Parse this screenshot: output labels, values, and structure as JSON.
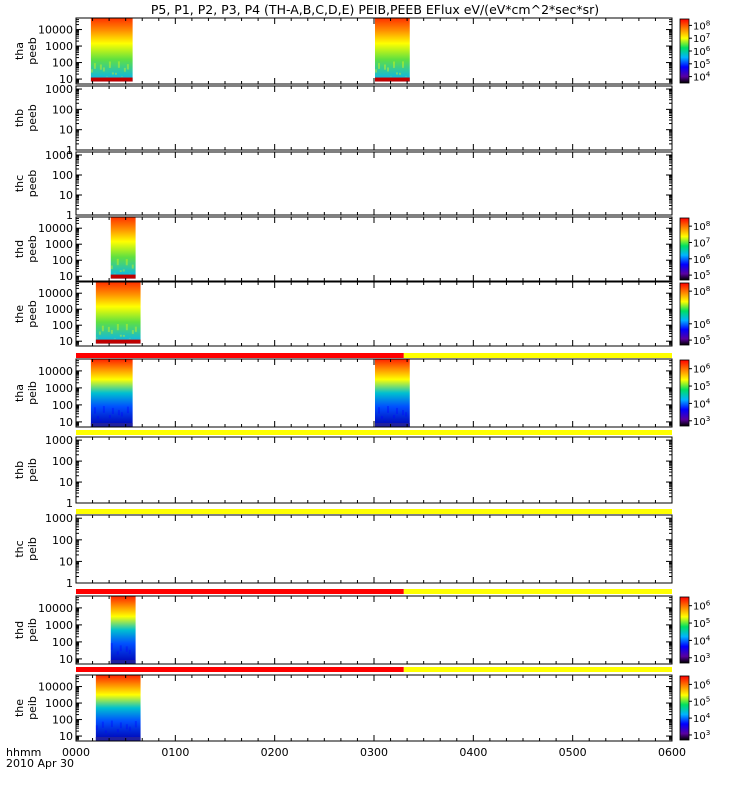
{
  "title": "P5, P1, P2, P3, P4 (TH-A,B,C,D,E) PEIB,PEEB EFlux eV/(eV*cm^2*sec*sr)",
  "x_axis": {
    "label_line1": "hhmm",
    "label_line2": "2010 Apr 30",
    "ticks": [
      "0000",
      "0100",
      "0200",
      "0300",
      "0400",
      "0500",
      "0600"
    ],
    "range_hours": [
      0,
      6
    ]
  },
  "colors": {
    "flag_red": "#ff0000",
    "flag_yellow": "#ffff00",
    "axis": "#000000"
  },
  "panels": [
    {
      "id": "tha-peeb",
      "ylabel1": "tha",
      "ylabel2": "peeb",
      "yticks": [
        "10",
        "100",
        "1000",
        "10000"
      ],
      "ylog": [
        0.7,
        4.7
      ],
      "colorbar": {
        "ticks": [
          "10^4",
          "10^5",
          "10^6",
          "10^7",
          "10^8"
        ],
        "range": [
          3.5,
          8.5
        ]
      },
      "spectrogram": [
        {
          "start": 0.15,
          "end": 0.57,
          "ylow": 0.85
        },
        {
          "start": 3.01,
          "end": 3.36,
          "ylow": 0.85
        }
      ],
      "flag": null
    },
    {
      "id": "thb-peeb",
      "ylabel1": "thb",
      "ylabel2": "peeb",
      "yticks": [
        "1",
        "10",
        "100",
        "1000"
      ],
      "ylog": [
        0,
        3.15
      ],
      "colorbar": null,
      "spectrogram": [],
      "flag": null
    },
    {
      "id": "thc-peeb",
      "ylabel1": "thc",
      "ylabel2": "peeb",
      "yticks": [
        "1",
        "10",
        "100",
        "1000"
      ],
      "ylog": [
        0,
        3.15
      ],
      "colorbar": null,
      "spectrogram": [],
      "flag": null
    },
    {
      "id": "thd-peeb",
      "ylabel1": "thd",
      "ylabel2": "peeb",
      "yticks": [
        "10",
        "100",
        "1000",
        "10000"
      ],
      "ylog": [
        0.7,
        4.7
      ],
      "colorbar": {
        "ticks": [
          "10^5",
          "10^6",
          "10^7",
          "10^8"
        ],
        "range": [
          4.7,
          8.5
        ]
      },
      "spectrogram": [
        {
          "start": 0.35,
          "end": 0.6,
          "ylow": 0.85
        }
      ],
      "flag": null
    },
    {
      "id": "the-peeb",
      "ylabel1": "the",
      "ylabel2": "peeb",
      "yticks": [
        "10",
        "100",
        "1000",
        "10000"
      ],
      "ylog": [
        0.7,
        4.7
      ],
      "colorbar": {
        "ticks": [
          "10^5",
          "10^6",
          "10^8"
        ],
        "range": [
          4.7,
          8.5
        ]
      },
      "spectrogram": [
        {
          "start": 0.2,
          "end": 0.65,
          "ylow": 0.85
        }
      ],
      "flag": null
    },
    {
      "id": "tha-peib",
      "ylabel1": "tha",
      "ylabel2": "peib",
      "yticks": [
        "10",
        "100",
        "1000",
        "10000"
      ],
      "ylog": [
        0.7,
        4.7
      ],
      "colorbar": {
        "ticks": [
          "10^3",
          "10^4",
          "10^5",
          "10^6"
        ],
        "range": [
          2.7,
          6.5
        ]
      },
      "spectrogram": [
        {
          "start": 0.15,
          "end": 0.57,
          "ylow": 0.7
        },
        {
          "start": 3.01,
          "end": 3.36,
          "ylow": 0.7
        }
      ],
      "flag": {
        "red_until": 3.3
      }
    },
    {
      "id": "thb-peib",
      "ylabel1": "thb",
      "ylabel2": "peib",
      "yticks": [
        "1",
        "10",
        "100",
        "1000"
      ],
      "ylog": [
        0,
        3.15
      ],
      "colorbar": null,
      "spectrogram": [],
      "flag": {
        "red_until": 0
      }
    },
    {
      "id": "thc-peib",
      "ylabel1": "thc",
      "ylabel2": "peib",
      "yticks": [
        "1",
        "10",
        "100",
        "1000"
      ],
      "ylog": [
        0,
        3.15
      ],
      "colorbar": null,
      "spectrogram": [],
      "flag": {
        "red_until": 0
      }
    },
    {
      "id": "thd-peib",
      "ylabel1": "thd",
      "ylabel2": "peib",
      "yticks": [
        "10",
        "100",
        "1000",
        "10000"
      ],
      "ylog": [
        0.7,
        4.7
      ],
      "colorbar": {
        "ticks": [
          "10^3",
          "10^4",
          "10^5",
          "10^6"
        ],
        "range": [
          2.7,
          6.5
        ]
      },
      "spectrogram": [
        {
          "start": 0.35,
          "end": 0.6,
          "ylow": 0.7
        }
      ],
      "flag": {
        "red_until": 3.3
      }
    },
    {
      "id": "the-peib",
      "ylabel1": "the",
      "ylabel2": "peib",
      "yticks": [
        "10",
        "100",
        "1000",
        "10000"
      ],
      "ylog": [
        0.7,
        4.7
      ],
      "colorbar": {
        "ticks": [
          "10^3",
          "10^4",
          "10^5",
          "10^6"
        ],
        "range": [
          2.7,
          6.5
        ]
      },
      "spectrogram": [
        {
          "start": 0.2,
          "end": 0.65,
          "ylow": 0.7
        }
      ],
      "flag": {
        "red_until": 3.3
      }
    }
  ],
  "chart_data": {
    "type": "heatmap",
    "title": "P5, P1, P2, P3, P4 (TH-A,B,C,D,E) PEIB,PEEB EFlux eV/(eV*cm^2*sec*sr)",
    "xlabel": "hhmm 2010 Apr 30",
    "x_ticks": [
      "0000",
      "0100",
      "0200",
      "0300",
      "0400",
      "0500",
      "0600"
    ],
    "series": [
      {
        "name": "tha peeb",
        "data_intervals_hhmm": [
          [
            "0009",
            "0034"
          ],
          [
            "0301",
            "0322"
          ]
        ]
      },
      {
        "name": "thb peeb",
        "data_intervals_hhmm": []
      },
      {
        "name": "thc peeb",
        "data_intervals_hhmm": []
      },
      {
        "name": "thd peeb",
        "data_intervals_hhmm": [
          [
            "0021",
            "0036"
          ]
        ]
      },
      {
        "name": "the peeb",
        "data_intervals_hhmm": [
          [
            "0012",
            "0039"
          ]
        ]
      },
      {
        "name": "tha peib",
        "data_intervals_hhmm": [
          [
            "0009",
            "0034"
          ],
          [
            "0301",
            "0322"
          ]
        ]
      },
      {
        "name": "thb peib",
        "data_intervals_hhmm": []
      },
      {
        "name": "thc peib",
        "data_intervals_hhmm": []
      },
      {
        "name": "thd peib",
        "data_intervals_hhmm": [
          [
            "0021",
            "0036"
          ]
        ]
      },
      {
        "name": "the peib",
        "data_intervals_hhmm": [
          [
            "0012",
            "0039"
          ]
        ]
      }
    ]
  }
}
